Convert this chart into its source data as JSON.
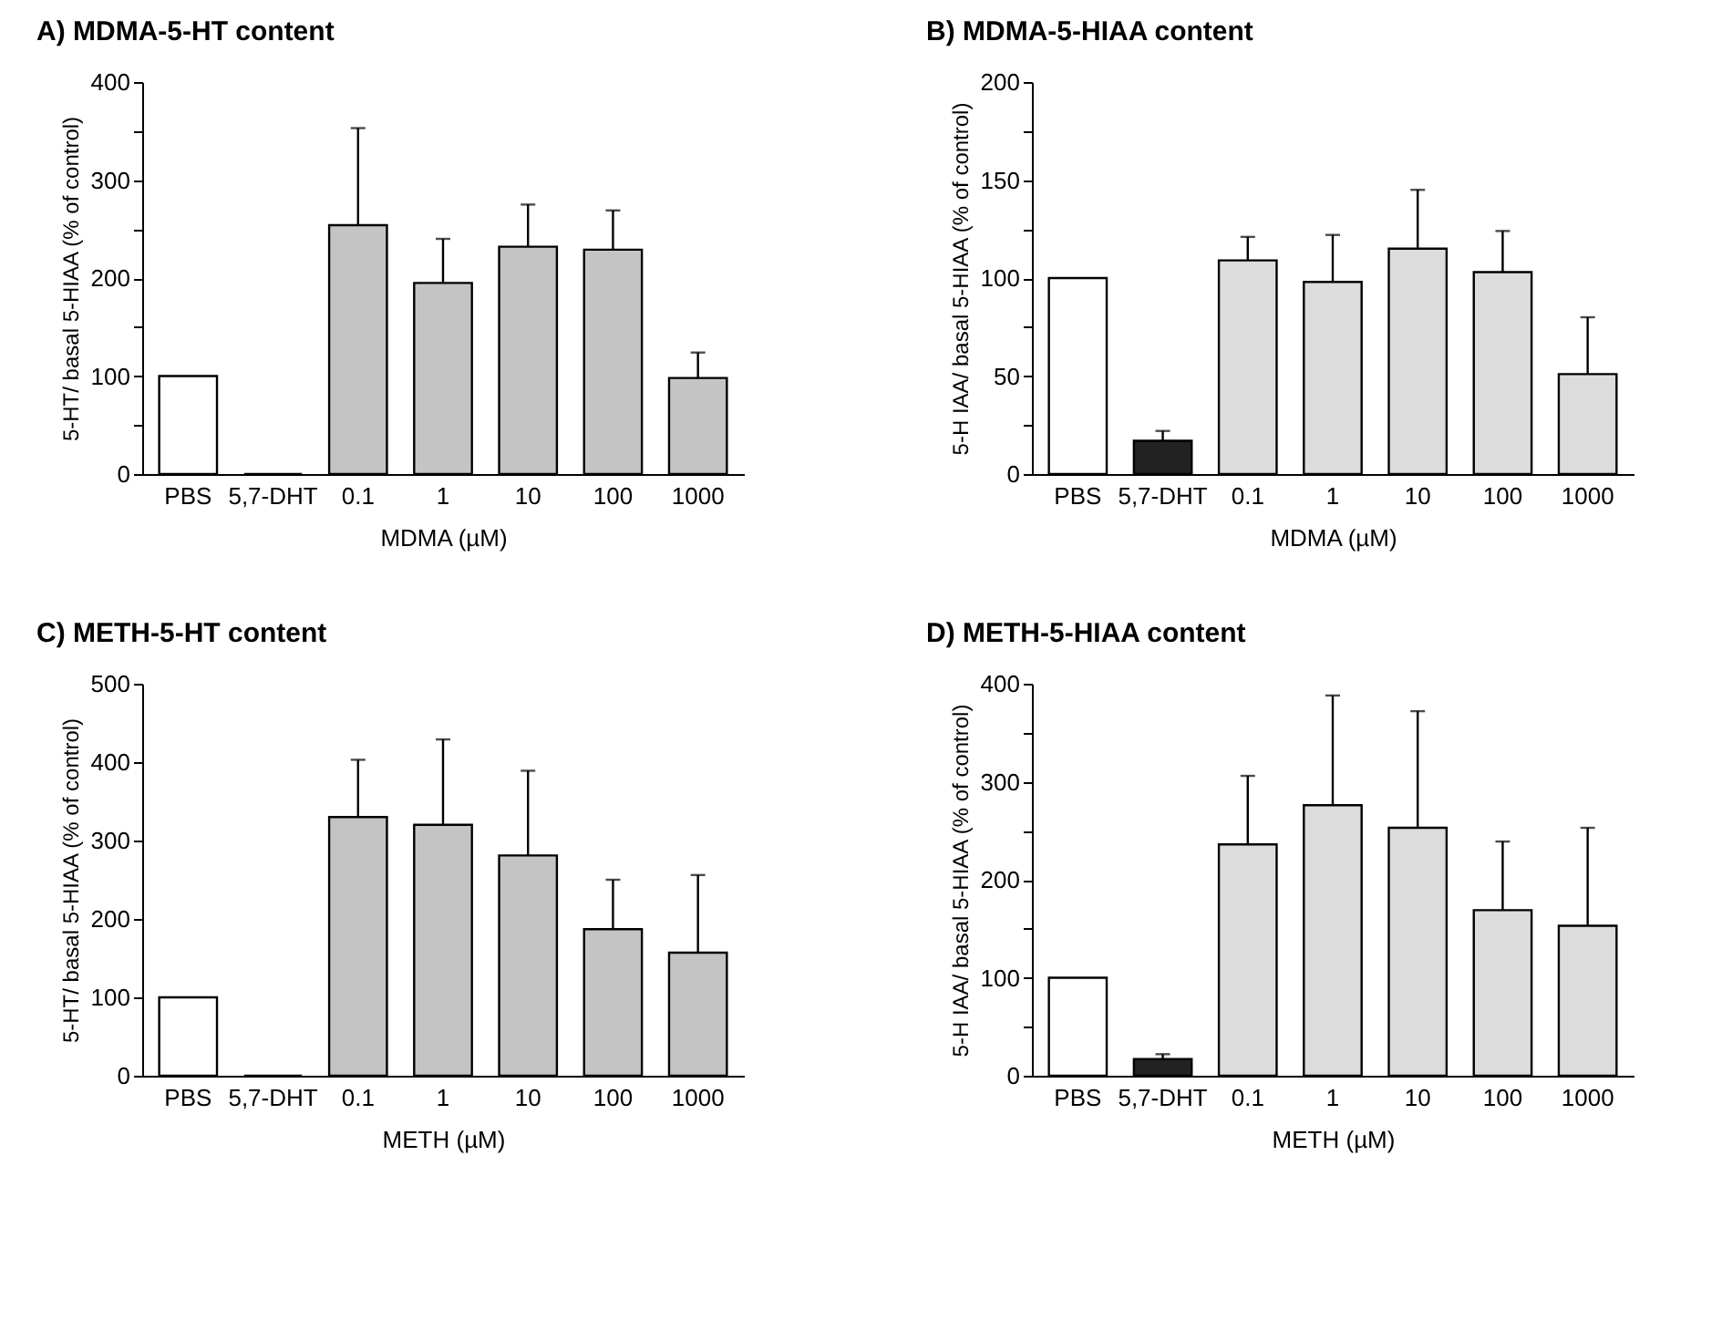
{
  "chart_data": [
    {
      "type": "bar",
      "title": "A) MDMA-5-HT content",
      "xlabel": "MDMA (µM)",
      "ylabel": "5-HT/ basal 5-HIAA (% of control)",
      "categories": [
        "PBS",
        "5,7-DHT",
        "0.1",
        "1",
        "10",
        "100",
        "1000"
      ],
      "values": [
        100,
        0,
        254,
        195,
        232,
        229,
        98
      ],
      "errors": [
        null,
        null,
        [
          254,
          353
        ],
        [
          195,
          240
        ],
        [
          232,
          275
        ],
        [
          229,
          269
        ],
        [
          98,
          124
        ]
      ],
      "colors": [
        "#ffffff",
        "#000000",
        "#c4c4c4",
        "#c4c4c4",
        "#c4c4c4",
        "#c4c4c4",
        "#c4c4c4"
      ],
      "ylim": [
        0,
        400
      ],
      "yticks": [
        0,
        {
          "value": 50,
          "label": null
        },
        100,
        {
          "value": 150,
          "label": null
        },
        200,
        {
          "value": 250,
          "label": null
        },
        300,
        {
          "value": 350,
          "label": null
        },
        400
      ],
      "grid": false
    },
    {
      "type": "bar",
      "title": "B) MDMA-5-HIAA content",
      "xlabel": "MDMA (µM)",
      "ylabel": "5-H IAA/ basal 5-HIAA (% of control)",
      "categories": [
        "PBS",
        "5,7-DHT",
        "0.1",
        "1",
        "10",
        "100",
        "1000"
      ],
      "values": [
        100,
        17,
        109,
        98,
        115,
        103,
        51
      ],
      "errors": [
        null,
        [
          17,
          22
        ],
        [
          109,
          121
        ],
        [
          98,
          122
        ],
        [
          115,
          145
        ],
        [
          103,
          124
        ],
        [
          51,
          80
        ]
      ],
      "colors": [
        "#ffffff",
        "#222222",
        "#dcdcdc",
        "#dcdcdc",
        "#dcdcdc",
        "#dcdcdc",
        "#dcdcdc"
      ],
      "ylim": [
        0,
        200
      ],
      "yticks": [
        0,
        {
          "value": 25,
          "label": null
        },
        50,
        {
          "value": 75,
          "label": null
        },
        100,
        {
          "value": 125,
          "label": null
        },
        150,
        {
          "value": 175,
          "label": null
        },
        200
      ],
      "grid": false
    },
    {
      "type": "bar",
      "title": "C) METH-5-HT content",
      "xlabel": "METH (µM)",
      "ylabel": "5-HT/ basal 5-HIAA (% of control)",
      "categories": [
        "PBS",
        "5,7-DHT",
        "0.1",
        "1",
        "10",
        "100",
        "1000"
      ],
      "values": [
        100,
        0,
        330,
        320,
        281,
        187,
        157
      ],
      "errors": [
        null,
        null,
        [
          330,
          403
        ],
        [
          320,
          429
        ],
        [
          281,
          389
        ],
        [
          187,
          250
        ],
        [
          157,
          256
        ]
      ],
      "colors": [
        "#ffffff",
        "#000000",
        "#c4c4c4",
        "#c4c4c4",
        "#c4c4c4",
        "#c4c4c4",
        "#c4c4c4"
      ],
      "ylim": [
        0,
        500
      ],
      "yticks": [
        0,
        100,
        200,
        300,
        400,
        500
      ],
      "grid": false
    },
    {
      "type": "bar",
      "title": "D) METH-5-HIAA content",
      "xlabel": "METH (µM)",
      "ylabel": "5-H IAA/ basal 5-HIAA (% of control)",
      "categories": [
        "PBS",
        "5,7-DHT",
        "0.1",
        "1",
        "10",
        "100",
        "1000"
      ],
      "values": [
        100,
        17,
        236,
        276,
        253,
        169,
        153
      ],
      "errors": [
        null,
        [
          17,
          22
        ],
        [
          236,
          306
        ],
        [
          276,
          388
        ],
        [
          253,
          372
        ],
        [
          169,
          239
        ],
        [
          153,
          253
        ]
      ],
      "colors": [
        "#ffffff",
        "#222222",
        "#dcdcdc",
        "#dcdcdc",
        "#dcdcdc",
        "#dcdcdc",
        "#dcdcdc"
      ],
      "ylim": [
        0,
        400
      ],
      "yticks": [
        0,
        {
          "value": 50,
          "label": null
        },
        100,
        {
          "value": 150,
          "label": null
        },
        200,
        {
          "value": 250,
          "label": null
        },
        300,
        {
          "value": 350,
          "label": null
        },
        400
      ],
      "grid": false
    }
  ]
}
